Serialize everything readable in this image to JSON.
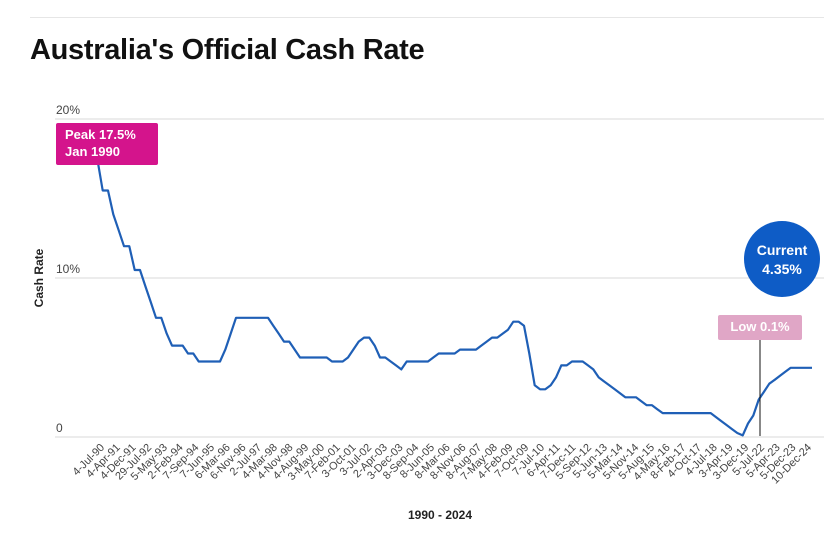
{
  "title": "Australia's Official Cash Rate",
  "chart_data": {
    "type": "line",
    "title": "Australia's Official Cash Rate",
    "xlabel": "1990 - 2024",
    "ylabel": "Cash Rate",
    "ylim": [
      0,
      20
    ],
    "yticks": [
      "0",
      "10%",
      "20%"
    ],
    "grid": true,
    "line_color": "#1f5fb6",
    "xticks": [
      "4-Jul-90",
      "4-Apr-91",
      "4-Dec-91",
      "29-Jul-92",
      "5-May-93",
      "2-Feb-94",
      "7-Sep-94",
      "7-Jun-95",
      "6-Mar-96",
      "6-Nov-96",
      "2-Jul-97",
      "4-Mar-98",
      "4-Nov-98",
      "4-Aug-99",
      "3-May-00",
      "7-Feb-01",
      "3-Oct-01",
      "3-Jul-02",
      "2-Apr-03",
      "3-Dec-03",
      "8-Sep-04",
      "8-Jun-05",
      "8-Mar-06",
      "8-Nov-06",
      "8-Aug-07",
      "7-May-08",
      "4-Feb-09",
      "7-Oct-09",
      "7-Jul-10",
      "6-Apr-11",
      "7-Dec-11",
      "5-Sep-12",
      "5-Jun-13",
      "5-Mar-14",
      "5-Nov-14",
      "5-Aug-15",
      "4-May-16",
      "8-Feb-17",
      "4-Oct-17",
      "4-Jul-18",
      "3-Apr-19",
      "3-Dec-19",
      "5-Jul-22",
      "5-Apr-23",
      "5-Dec-23",
      "10-Dec-24"
    ],
    "series": [
      {
        "values": [
          17.5,
          17.5,
          15.5,
          15.5,
          14,
          13,
          12,
          12,
          10.5,
          10.5,
          9.5,
          8.5,
          7.5,
          7.5,
          6.5,
          5.75,
          5.75,
          5.75,
          5.25,
          5.25,
          4.75,
          4.75,
          4.75,
          4.75,
          4.75,
          5.5,
          6.5,
          7.5,
          7.5,
          7.5,
          7.5,
          7.5,
          7.5,
          7.5,
          7,
          6.5,
          6,
          6,
          5.5,
          5,
          5,
          5,
          5,
          5,
          5,
          4.75,
          4.75,
          4.75,
          5,
          5.5,
          6,
          6.25,
          6.25,
          5.75,
          5,
          5,
          4.75,
          4.5,
          4.25,
          4.75,
          4.75,
          4.75,
          4.75,
          4.75,
          5,
          5.25,
          5.25,
          5.25,
          5.25,
          5.5,
          5.5,
          5.5,
          5.5,
          5.75,
          6,
          6.25,
          6.25,
          6.5,
          6.75,
          7.25,
          7.25,
          7,
          5.25,
          3.25,
          3,
          3,
          3.25,
          3.75,
          4.5,
          4.5,
          4.75,
          4.75,
          4.75,
          4.5,
          4.25,
          3.75,
          3.5,
          3.25,
          3,
          2.75,
          2.5,
          2.5,
          2.5,
          2.25,
          2,
          2,
          1.75,
          1.5,
          1.5,
          1.5,
          1.5,
          1.5,
          1.5,
          1.5,
          1.5,
          1.5,
          1.5,
          1.25,
          1,
          0.75,
          0.5,
          0.25,
          0.1,
          0.85,
          1.35,
          2.35,
          2.85,
          3.35,
          3.6,
          3.85,
          4.1,
          4.35,
          4.35,
          4.35,
          4.35,
          4.35
        ]
      }
    ],
    "annotations": [
      {
        "label_line1": "Peak 17.5%",
        "label_line2": "Jan 1990",
        "color": "#d4148c"
      },
      {
        "label_line1": "Current",
        "label_line2": "4.35%",
        "color": "#0e5cc6"
      },
      {
        "label_line1": "Low 0.1%",
        "color": "#e0a6c6"
      }
    ]
  }
}
